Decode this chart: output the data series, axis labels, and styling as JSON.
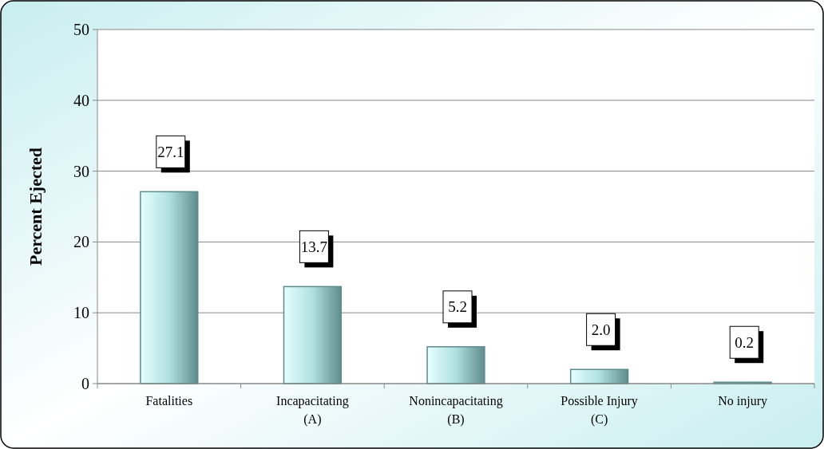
{
  "chart_data": {
    "type": "bar",
    "ylabel": "Percent Ejected",
    "categories": [
      "Fatalities",
      "Incapacitating\n(A)",
      "Nonincapacitating\n(B)",
      "Possible Injury\n(C)",
      "No injury"
    ],
    "values": [
      27.1,
      13.7,
      5.2,
      2.0,
      0.2
    ],
    "color": "#5f8c8c",
    "ylim": [
      0,
      50
    ],
    "yticks": [
      0,
      10,
      20,
      30,
      40,
      50
    ],
    "grid": "y",
    "value_labels": [
      "27.1",
      "13.7",
      "5.2",
      "2.0",
      "0.2"
    ]
  }
}
